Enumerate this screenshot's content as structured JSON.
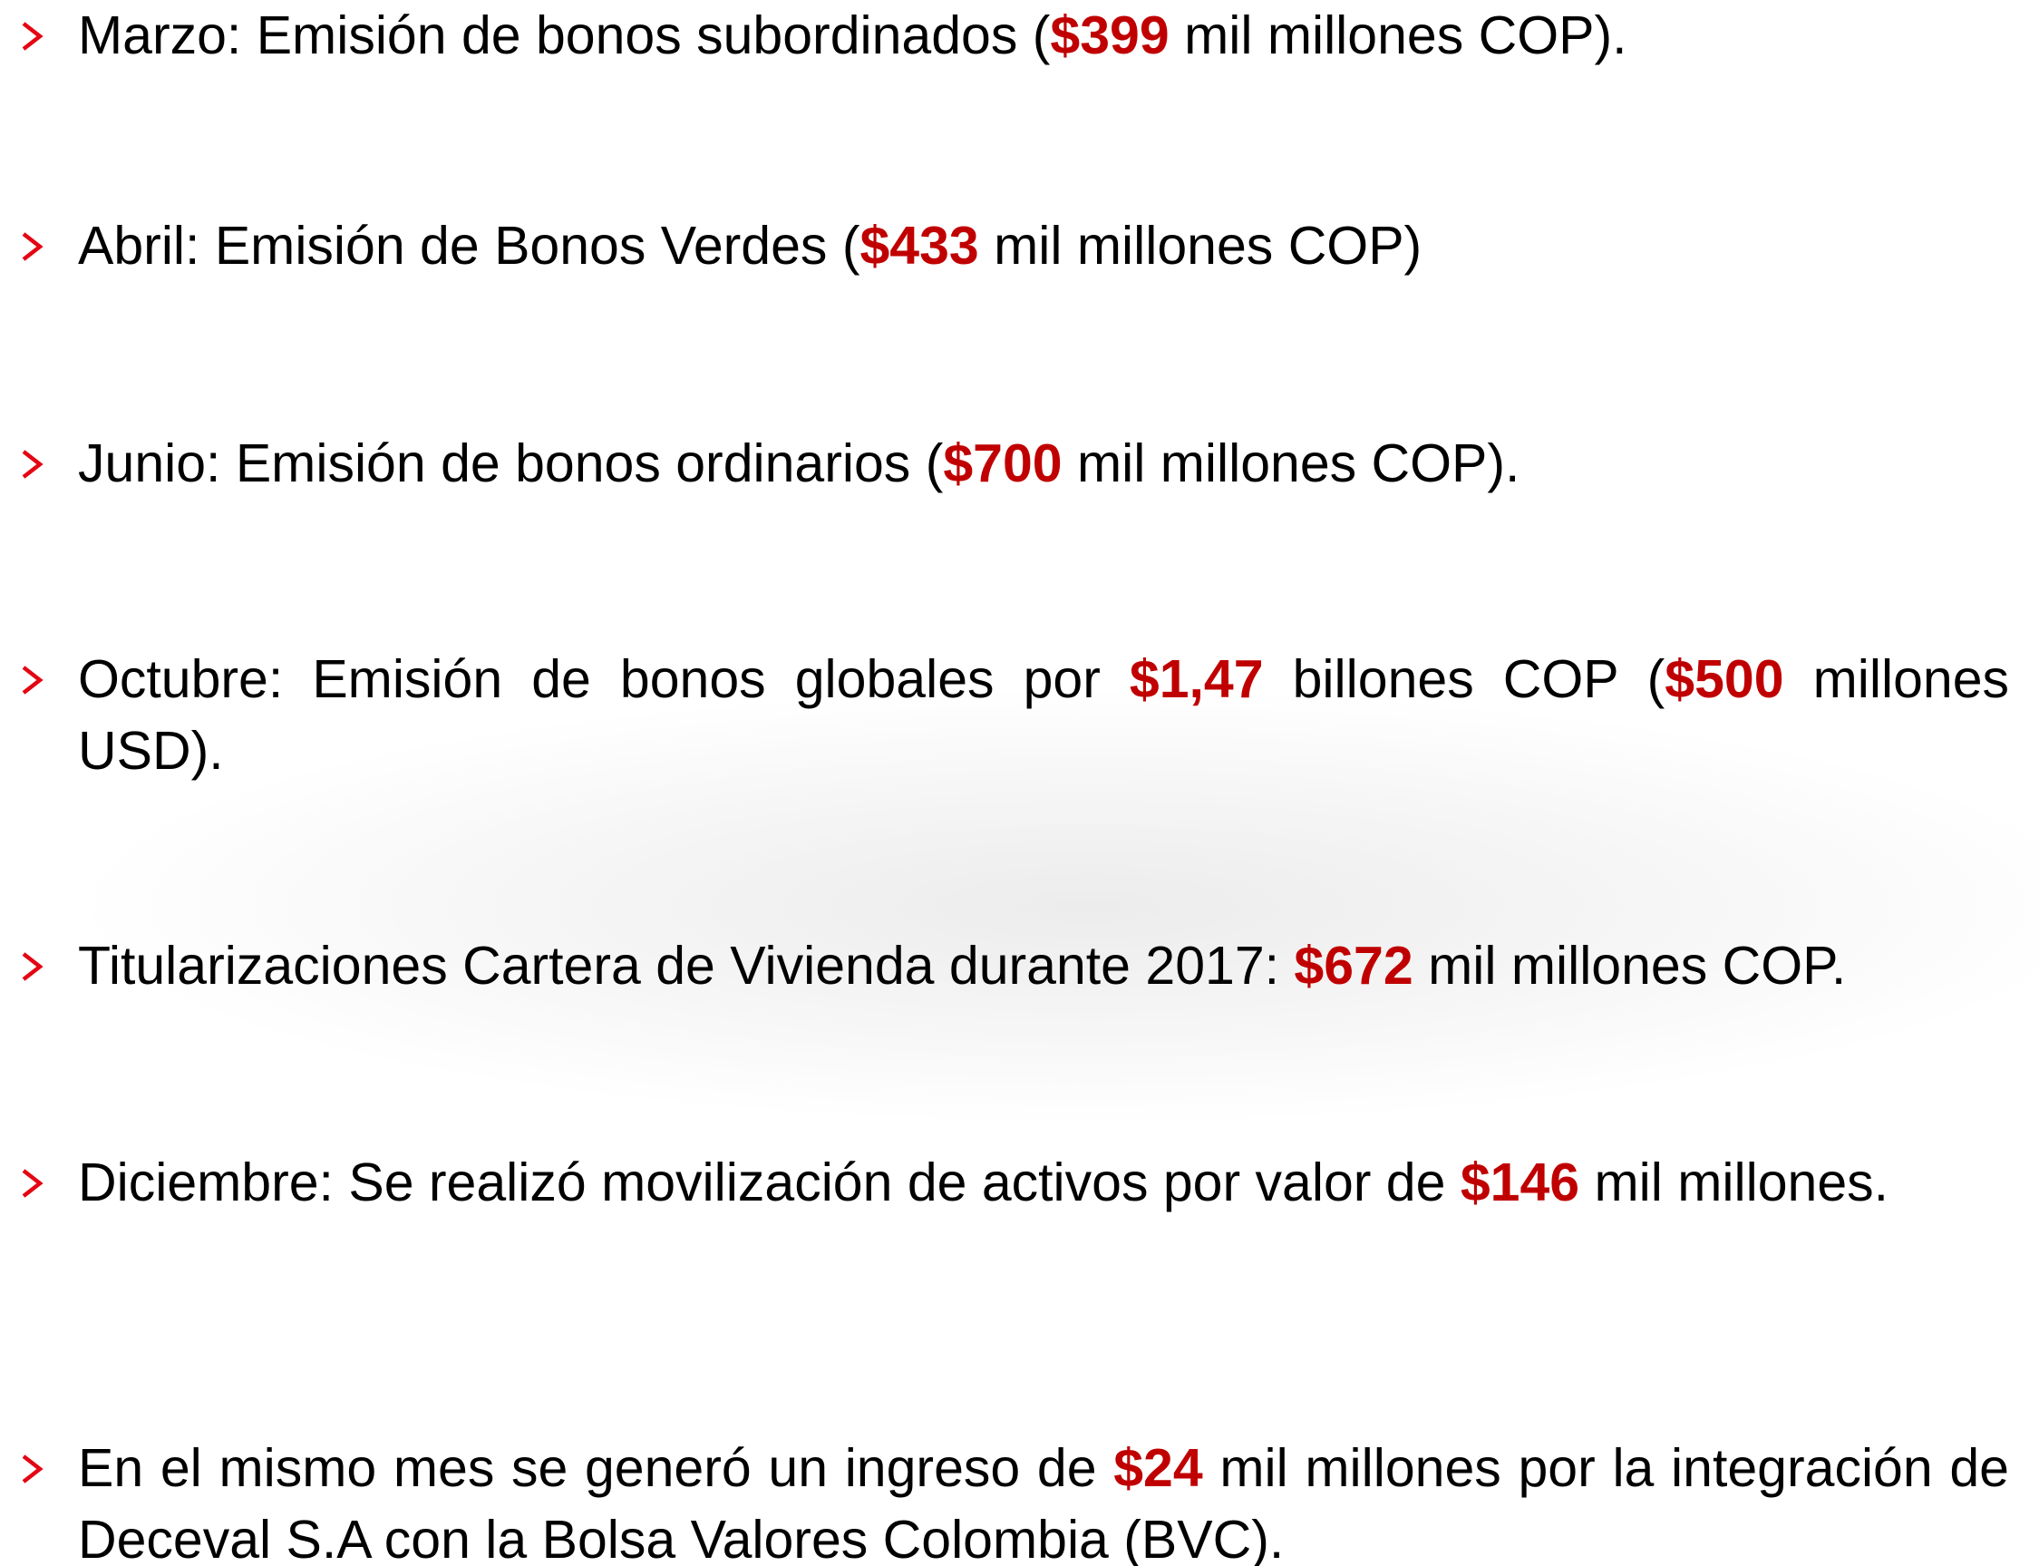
{
  "items": [
    {
      "parts": [
        {
          "text": "Marzo: Emisión de bonos subordinados ("
        },
        {
          "text": "$399",
          "bold": true
        },
        {
          "text": " mil millones COP)."
        }
      ]
    },
    {
      "parts": [
        {
          "text": "Abril: Emisión de Bonos Verdes ("
        },
        {
          "text": "$433",
          "bold": true
        },
        {
          "text": " mil millones COP)"
        }
      ]
    },
    {
      "parts": [
        {
          "text": "Junio: Emisión de bonos ordinarios ("
        },
        {
          "text": "$700",
          "bold": true
        },
        {
          "text": " mil millones COP)."
        }
      ]
    },
    {
      "parts": [
        {
          "text": "Octubre: Emisión de bonos globales por "
        },
        {
          "text": "$1,47",
          "bold": true
        },
        {
          "text": " billones COP ("
        },
        {
          "text": "$500",
          "bold": true
        },
        {
          "text": " millones USD)."
        }
      ]
    },
    {
      "parts": [
        {
          "text": "Titularizaciones Cartera de Vivienda durante 2017: "
        },
        {
          "text": "$672",
          "bold": true
        },
        {
          "text": " mil millones COP."
        }
      ]
    },
    {
      "parts": [
        {
          "text": "Diciembre: Se realizó movilización de activos por valor de "
        },
        {
          "text": "$146",
          "bold": true
        },
        {
          "text": " mil millones."
        }
      ]
    },
    {
      "parts": [
        {
          "text": "En el mismo mes se generó un ingreso de "
        },
        {
          "text": "$24",
          "bold": true
        },
        {
          "text": " mil millones por la integración de Deceval S.A con la Bolsa Valores Colombia (BVC)."
        }
      ]
    }
  ]
}
